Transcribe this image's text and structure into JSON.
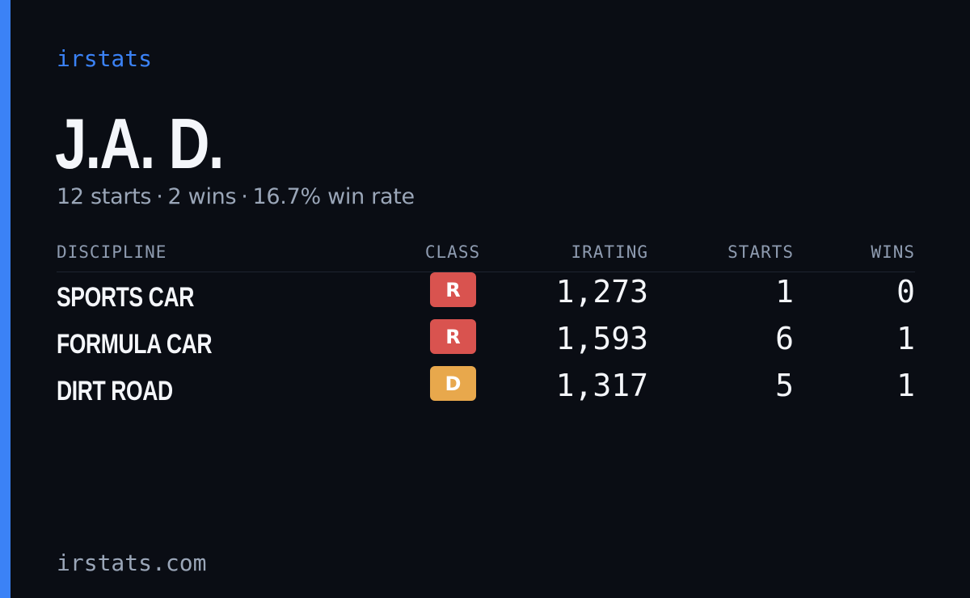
{
  "colors": {
    "accent": "#3b82f6",
    "class_R": "#d9534f",
    "class_D": "#e8a84c",
    "background": "#0a0d14"
  },
  "brand": "irstats",
  "driver": {
    "name": "J.A. D."
  },
  "summary": {
    "starts": "12 starts",
    "wins": "2 wins",
    "win_rate": "16.7% win rate",
    "separator": "·"
  },
  "table": {
    "headers": {
      "discipline": "DISCIPLINE",
      "class": "CLASS",
      "irating": "IRATING",
      "starts": "STARTS",
      "wins": "WINS"
    },
    "rows": [
      {
        "discipline": "SPORTS CAR",
        "class": "R",
        "irating": "1,273",
        "starts": "1",
        "wins": "0"
      },
      {
        "discipline": "FORMULA CAR",
        "class": "R",
        "irating": "1,593",
        "starts": "6",
        "wins": "1"
      },
      {
        "discipline": "DIRT ROAD",
        "class": "D",
        "irating": "1,317",
        "starts": "5",
        "wins": "1"
      }
    ]
  },
  "footer": "irstats.com"
}
